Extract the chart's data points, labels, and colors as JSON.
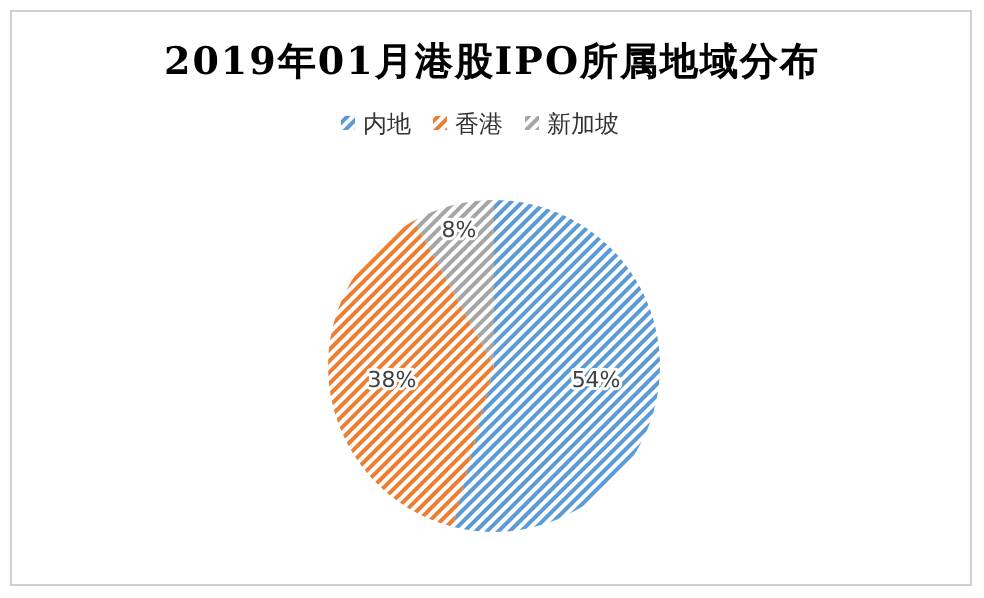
{
  "chart_data": {
    "type": "pie",
    "title": "2019年01月港股IPO所属地域分布",
    "categories": [
      "内地",
      "香港",
      "新加坡"
    ],
    "values": [
      54,
      38,
      8
    ],
    "colors": [
      "#5b9bd5",
      "#ed7d31",
      "#a5a5a5"
    ],
    "value_labels": [
      "54%",
      "38%",
      "8%"
    ],
    "legend": "top"
  }
}
